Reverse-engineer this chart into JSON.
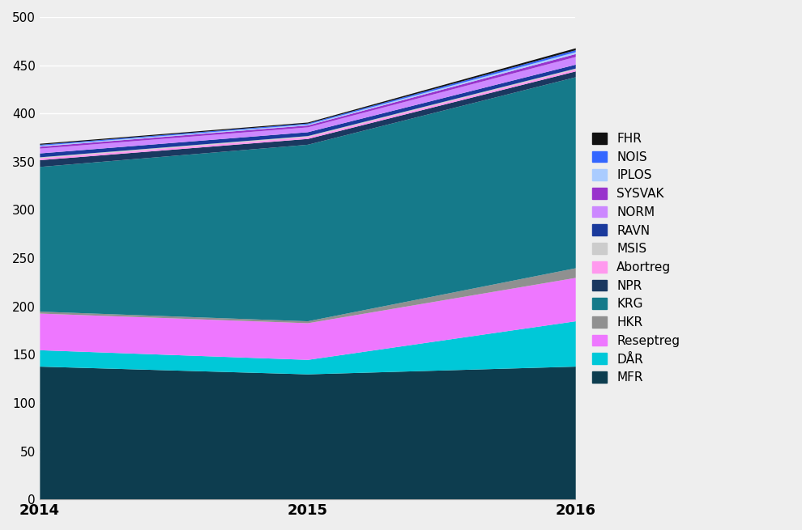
{
  "years": [
    2014,
    2015,
    2016
  ],
  "series": [
    {
      "name": "MFR",
      "color": "#0d3d4f",
      "values": [
        138,
        130,
        138
      ]
    },
    {
      "name": "DÅR",
      "color": "#00c8d8",
      "values": [
        17,
        15,
        47
      ]
    },
    {
      "name": "Reseptreg",
      "color": "#ee77ff",
      "values": [
        38,
        38,
        45
      ]
    },
    {
      "name": "HKR",
      "color": "#909090",
      "values": [
        2,
        2,
        10
      ]
    },
    {
      "name": "KRG",
      "color": "#157a8a",
      "values": [
        150,
        183,
        198
      ]
    },
    {
      "name": "NPR",
      "color": "#1a3860",
      "values": [
        7,
        6,
        6
      ]
    },
    {
      "name": "Abortreg",
      "color": "#ff99ee",
      "values": [
        2,
        2,
        2
      ]
    },
    {
      "name": "MSIS",
      "color": "#cccccc",
      "values": [
        1,
        1,
        1
      ]
    },
    {
      "name": "RAVN",
      "color": "#1a3a9c",
      "values": [
        4,
        4,
        4
      ]
    },
    {
      "name": "NORM",
      "color": "#cc88ff",
      "values": [
        5,
        5,
        8
      ]
    },
    {
      "name": "SYSVAK",
      "color": "#9933cc",
      "values": [
        2,
        2,
        3
      ]
    },
    {
      "name": "IPLOS",
      "color": "#aaccff",
      "values": [
        1,
        1,
        2
      ]
    },
    {
      "name": "NOIS",
      "color": "#3366ff",
      "values": [
        1,
        1,
        2
      ]
    },
    {
      "name": "FHR",
      "color": "#111111",
      "values": [
        1,
        1,
        2
      ]
    }
  ],
  "ylim": [
    0,
    500
  ],
  "yticks": [
    0,
    50,
    100,
    150,
    200,
    250,
    300,
    350,
    400,
    450,
    500
  ],
  "background_color": "#eeeeee",
  "legend_fontsize": 11
}
